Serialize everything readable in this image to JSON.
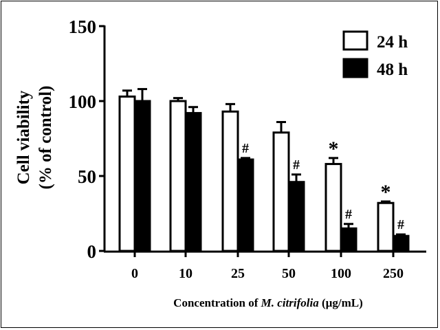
{
  "chart_data": {
    "type": "bar",
    "categories": [
      "0",
      "10",
      "25",
      "50",
      "100",
      "250"
    ],
    "series": [
      {
        "name": "24 h",
        "fill": "#ffffff",
        "values": [
          103,
          100,
          93,
          79,
          58,
          32
        ],
        "errors": [
          4,
          2,
          5,
          7,
          4,
          1
        ],
        "markers": [
          "",
          "",
          "",
          "",
          "*",
          "*"
        ]
      },
      {
        "name": "48 h",
        "fill": "#000000",
        "values": [
          100,
          92,
          61,
          46,
          15,
          10
        ],
        "errors": [
          8,
          4,
          1,
          5,
          3,
          1
        ],
        "markers": [
          "",
          "",
          "#",
          "#",
          "#",
          "#"
        ]
      }
    ],
    "ylabel_line1": "Cell viability",
    "ylabel_line2": "(% of control)",
    "xlabel_prefix": "Concentration of ",
    "xlabel_species": "M. citrifolia",
    "xlabel_unit": " (µg/mL)",
    "yticks": [
      0,
      50,
      100,
      150
    ],
    "ylim": [
      0,
      150
    ],
    "legend_position": "top-right",
    "grid": false
  }
}
